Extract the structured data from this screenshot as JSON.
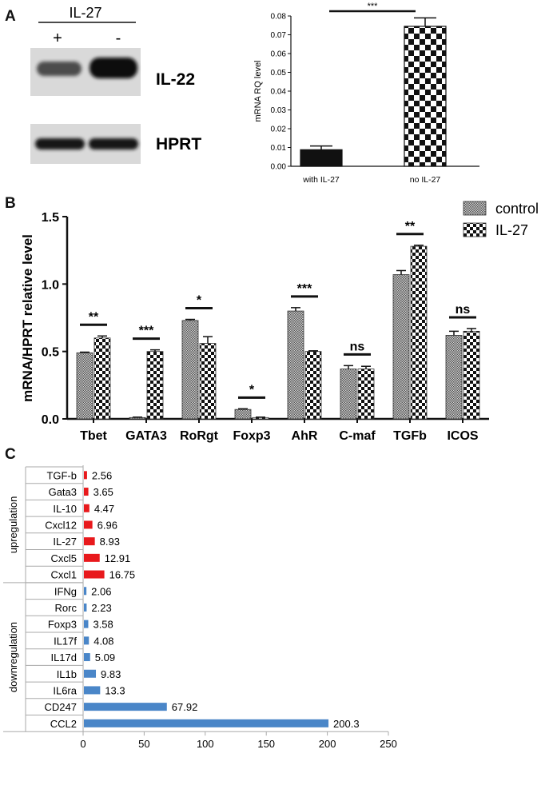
{
  "panels": {
    "a": "A",
    "b": "B",
    "c": "C"
  },
  "colors": {
    "red": "#e8191c",
    "blue": "#4a86c8",
    "band": "#181818",
    "gel": "#d9d9d9"
  },
  "blot": {
    "treatment_label": "IL-27",
    "lane_signs": [
      "+",
      "-"
    ],
    "rows": [
      {
        "label": "IL-22",
        "band_intensity": [
          0.7,
          1.0
        ]
      },
      {
        "label": "HPRT",
        "band_intensity": [
          0.85,
          0.85
        ]
      }
    ]
  },
  "chart_data": [
    {
      "type": "bar",
      "categories": [
        "with IL-27",
        "no IL-27"
      ],
      "values": [
        0.0088,
        0.0745
      ],
      "errors": [
        0.002,
        0.0045
      ],
      "patterns": [
        "solid",
        "checker"
      ],
      "ylabel": "mRNA RQ level",
      "ylim": [
        0,
        0.08
      ],
      "yticks": [
        "0.00",
        "0.01",
        "0.02",
        "0.03",
        "0.04",
        "0.05",
        "0.06",
        "0.07",
        "0.08"
      ],
      "significance": "***"
    },
    {
      "type": "bar",
      "categories": [
        "Tbet",
        "GATA3",
        "RoRgt",
        "Foxp3",
        "AhR",
        "C-maf",
        "TGFb",
        "ICOS"
      ],
      "series": [
        {
          "name": "control",
          "values": [
            0.49,
            0.01,
            0.73,
            0.07,
            0.8,
            0.37,
            1.07,
            0.62
          ],
          "errors": [
            0.005,
            0.003,
            0.008,
            0.005,
            0.025,
            0.025,
            0.03,
            0.03
          ]
        },
        {
          "name": "IL-27",
          "values": [
            0.6,
            0.5,
            0.56,
            0.01,
            0.5,
            0.37,
            1.28,
            0.65
          ],
          "errors": [
            0.015,
            0.012,
            0.05,
            0.003,
            0.005,
            0.02,
            0.008,
            0.02
          ]
        }
      ],
      "significance": [
        "**",
        "***",
        "*",
        "*",
        "***",
        "ns",
        "**",
        "ns"
      ],
      "ylabel": "mRNA/HPRT relative level",
      "ylim": [
        0,
        1.5
      ],
      "yticks": [
        "0.0",
        "0.5",
        "1.0",
        "1.5"
      ],
      "legend_position": "top-right"
    },
    {
      "type": "bar",
      "orientation": "horizontal",
      "groups": [
        {
          "label": "upregulation",
          "color_key": "red",
          "items": [
            {
              "gene": "TGF-b",
              "value": 2.56
            },
            {
              "gene": "Gata3",
              "value": 3.65
            },
            {
              "gene": "IL-10",
              "value": 4.47
            },
            {
              "gene": "Cxcl12",
              "value": 6.96
            },
            {
              "gene": "IL-27",
              "value": 8.93
            },
            {
              "gene": "Cxcl5",
              "value": 12.91
            },
            {
              "gene": "Cxcl1",
              "value": 16.75
            }
          ]
        },
        {
          "label": "downregulation",
          "color_key": "blue",
          "items": [
            {
              "gene": "IFNg",
              "value": 2.06
            },
            {
              "gene": "Rorc",
              "value": 2.23
            },
            {
              "gene": "Foxp3",
              "value": 3.58
            },
            {
              "gene": "IL17f",
              "value": 4.08
            },
            {
              "gene": "IL17d",
              "value": 5.09
            },
            {
              "gene": "IL1b",
              "value": 9.83
            },
            {
              "gene": "IL6ra",
              "value": 13.3
            },
            {
              "gene": "CD247",
              "value": 67.92
            },
            {
              "gene": "CCL2",
              "value": 200.3
            }
          ]
        }
      ],
      "xlim": [
        0,
        250
      ],
      "xticks": [
        "0",
        "50",
        "100",
        "150",
        "200",
        "250"
      ]
    }
  ]
}
